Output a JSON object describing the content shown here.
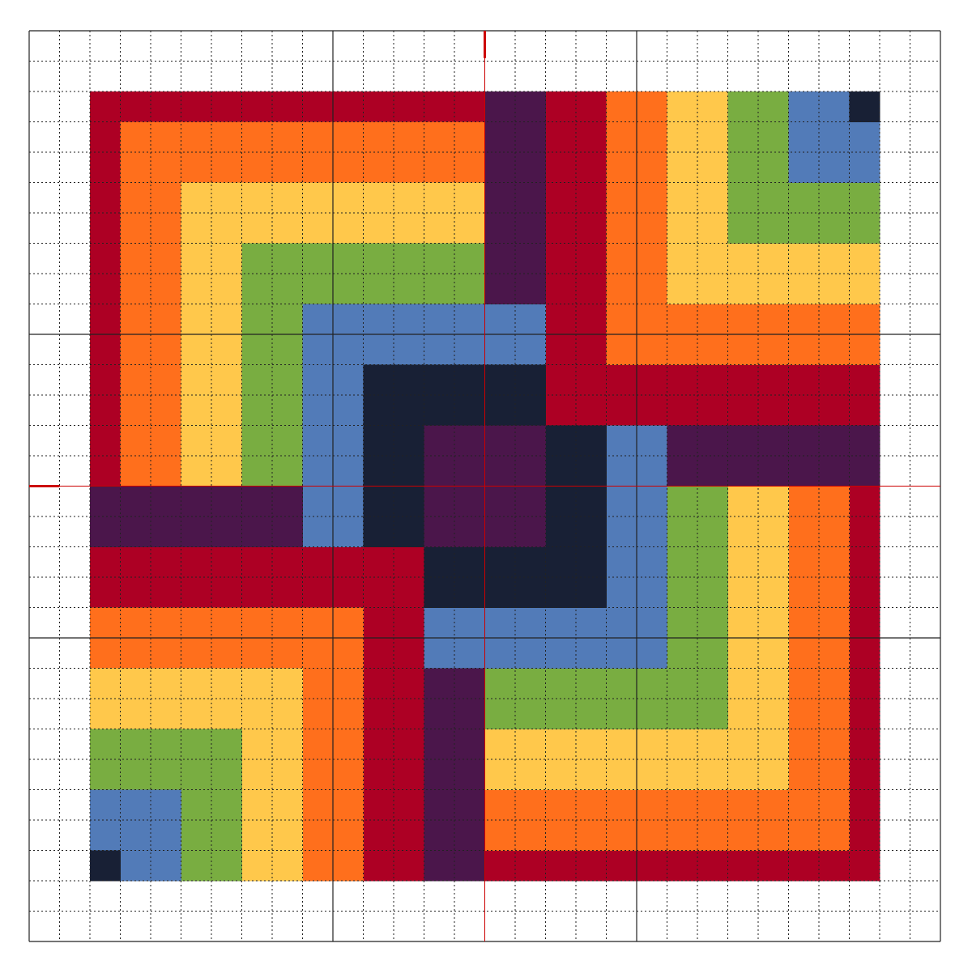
{
  "pattern": {
    "grid_cells": 30,
    "major_every": 10,
    "center_line": 15,
    "grid_color": "#222222",
    "center_line_color": "#cc0000",
    "background": "#ffffff",
    "palette": {
      "R": "#ad0024",
      "O": "#ff6f1c",
      "Y": "#ffc84b",
      "G": "#79ad41",
      "B": "#527bb8",
      "N": "#182035",
      "P": "#4b164b"
    },
    "regions": [
      {
        "color": "R",
        "cells": [
          [
            2,
            2,
            14,
            2
          ],
          [
            2,
            2,
            2,
            14
          ],
          [
            17,
            2,
            18,
            12
          ],
          [
            19,
            11,
            27,
            12
          ],
          [
            27,
            15,
            27,
            27
          ],
          [
            15,
            27,
            27,
            27
          ],
          [
            2,
            17,
            12,
            18
          ],
          [
            11,
            17,
            12,
            27
          ]
        ]
      },
      {
        "color": "O",
        "cells": [
          [
            3,
            3,
            14,
            4
          ],
          [
            3,
            3,
            4,
            14
          ],
          [
            19,
            2,
            20,
            10
          ],
          [
            21,
            9,
            27,
            10
          ],
          [
            25,
            15,
            26,
            26
          ],
          [
            15,
            25,
            26,
            26
          ],
          [
            2,
            19,
            10,
            20
          ],
          [
            9,
            19,
            10,
            27
          ]
        ]
      },
      {
        "color": "Y",
        "cells": [
          [
            5,
            5,
            14,
            6
          ],
          [
            5,
            5,
            6,
            14
          ],
          [
            21,
            2,
            22,
            8
          ],
          [
            23,
            7,
            27,
            8
          ],
          [
            23,
            15,
            24,
            24
          ],
          [
            15,
            23,
            24,
            24
          ],
          [
            2,
            21,
            8,
            22
          ],
          [
            7,
            21,
            8,
            27
          ]
        ]
      },
      {
        "color": "G",
        "cells": [
          [
            7,
            7,
            14,
            8
          ],
          [
            7,
            7,
            8,
            14
          ],
          [
            23,
            2,
            24,
            6
          ],
          [
            25,
            5,
            27,
            6
          ],
          [
            21,
            15,
            22,
            22
          ],
          [
            15,
            21,
            22,
            22
          ],
          [
            2,
            23,
            6,
            24
          ],
          [
            5,
            23,
            6,
            27
          ]
        ]
      },
      {
        "color": "B",
        "cells": [
          [
            9,
            9,
            16,
            10
          ],
          [
            9,
            9,
            10,
            16
          ],
          [
            25,
            2,
            26,
            4
          ],
          [
            27,
            3,
            27,
            4
          ],
          [
            19,
            13,
            20,
            20
          ],
          [
            13,
            19,
            20,
            20
          ],
          [
            2,
            25,
            4,
            26
          ],
          [
            3,
            27,
            4,
            27
          ]
        ]
      },
      {
        "color": "N",
        "cells": [
          [
            11,
            11,
            16,
            12
          ],
          [
            11,
            11,
            12,
            16
          ],
          [
            27,
            2,
            27,
            2
          ],
          [
            17,
            13,
            18,
            18
          ],
          [
            13,
            17,
            18,
            18
          ],
          [
            2,
            27,
            2,
            27
          ]
        ]
      },
      {
        "color": "P",
        "cells": [
          [
            13,
            13,
            16,
            16
          ],
          [
            15,
            2,
            16,
            8
          ],
          [
            2,
            15,
            8,
            16
          ],
          [
            21,
            13,
            27,
            14
          ],
          [
            13,
            21,
            14,
            27
          ]
        ]
      }
    ]
  }
}
